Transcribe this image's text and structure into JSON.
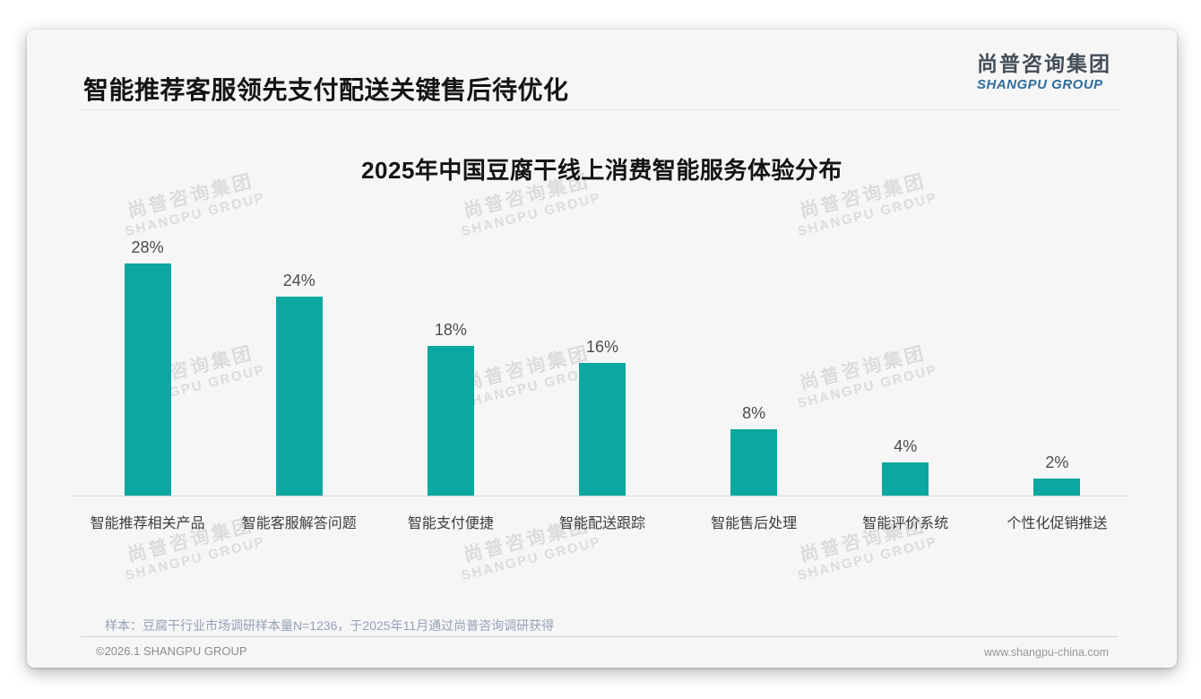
{
  "header": {
    "title": "智能推荐客服领先支付配送关键售后待优化",
    "logo": {
      "name_cn": "尚普咨询集团",
      "name_en": "SHANGPU GROUP"
    }
  },
  "watermark": {
    "line1": "尚普咨询集团",
    "line2": "SHANGPU GROUP"
  },
  "chart_data": {
    "type": "bar",
    "title": "2025年中国豆腐干线上消费智能服务体验分布",
    "categories": [
      "智能推荐相关产品",
      "智能客服解答问题",
      "智能支付便捷",
      "智能配送跟踪",
      "智能售后处理",
      "智能评价系统",
      "个性化促销推送"
    ],
    "values": [
      28,
      24,
      18,
      16,
      8,
      4,
      2
    ],
    "value_labels": [
      "28%",
      "24%",
      "18%",
      "16%",
      "8%",
      "4%",
      "2%"
    ],
    "unit": "%",
    "ylim": [
      0,
      30
    ],
    "grid": false,
    "legend": "none",
    "bar_color": "#0aa8a0"
  },
  "footnote": "样本：豆腐干行业市场调研样本量N=1236，于2025年11月通过尚普咨询调研获得",
  "footer": {
    "copyright": "©2026.1 SHANGPU GROUP",
    "website": "www.shangpu-china.com"
  },
  "colors": {
    "bar": "#0aa8a0",
    "logo_blue": "#2e6d9e",
    "footnote_gray_blue": "#95a1b5"
  }
}
